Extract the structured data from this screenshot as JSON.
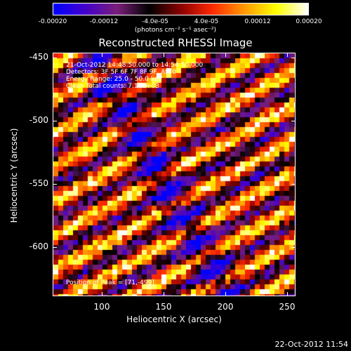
{
  "colorbar": {
    "ticks": [
      "-0.00020",
      "-0.00012",
      "-4.0e-05",
      "4.0e-05",
      "0.00012",
      "0.00020"
    ],
    "units": "(photons cm⁻² s⁻¹ asec⁻²)",
    "colors": [
      "#0000ff",
      "#4400cc",
      "#7a1f7a",
      "#000000",
      "#8b0000",
      "#ff2a00",
      "#ff9900",
      "#ffff00",
      "#ffffff"
    ]
  },
  "title": "Reconstructed RHESSI Image",
  "annotations": {
    "time": "21-Oct-2012 14:48:50.000 to 14:54:50.000",
    "detectors": "Detectors: 3F 5F 6F 7F 8F 9F, Att 0",
    "energy": "Energy Range: 25.0 - 50.0 keV",
    "clean": "Clean     Total counts: 7.14E+03",
    "peak": "Position of Peak = [71,-499]"
  },
  "axes": {
    "xlabel": "Heliocentric X (arcsec)",
    "ylabel": "Heliocentric Y (arcsec)",
    "xticks": [
      "100",
      "150",
      "200",
      "250"
    ],
    "yticks": [
      "-450",
      "-500",
      "-550",
      "-600"
    ],
    "xrange": [
      62,
      258
    ],
    "yrange": [
      -640,
      -443
    ]
  },
  "timestamp": "22-Oct-2012 11:54"
}
